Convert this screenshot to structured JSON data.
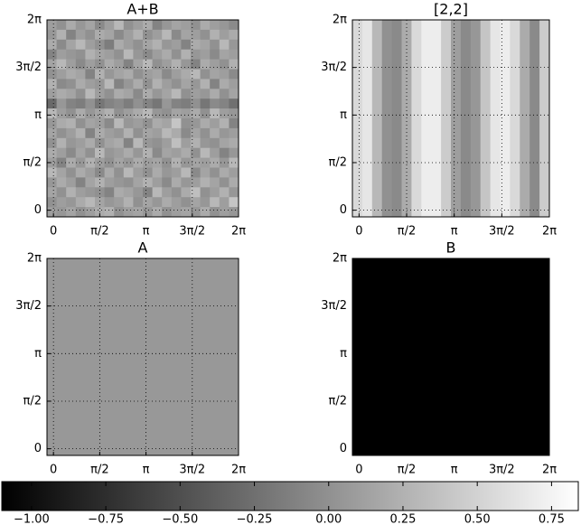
{
  "chart_data": [
    {
      "type": "heatmap",
      "title": "A+B",
      "z": [
        [
          0.1,
          0.0,
          0.2,
          0.05,
          0.15,
          -0.05,
          0.1,
          0.3,
          0.0,
          0.1,
          0.2,
          -0.1,
          0.05,
          0.15,
          0.1,
          0.0,
          0.2,
          0.1,
          0.05,
          -0.05
        ],
        [
          0.05,
          0.25,
          -0.1,
          0.1,
          0.0,
          0.2,
          0.15,
          -0.05,
          0.1,
          0.25,
          0.0,
          0.1,
          0.3,
          -0.05,
          0.15,
          0.1,
          0.0,
          0.25,
          0.1,
          0.2
        ],
        [
          0.2,
          -0.05,
          0.15,
          0.3,
          0.1,
          0.0,
          -0.15,
          0.2,
          0.1,
          0.0,
          0.15,
          0.25,
          0.05,
          0.1,
          -0.1,
          0.2,
          0.15,
          0.0,
          0.3,
          0.05
        ],
        [
          -0.1,
          0.1,
          0.05,
          0.0,
          0.25,
          0.15,
          0.1,
          0.0,
          0.3,
          0.05,
          -0.05,
          0.1,
          0.2,
          0.0,
          0.25,
          0.05,
          0.1,
          -0.05,
          0.15,
          0.1
        ],
        [
          0.15,
          0.3,
          0.1,
          -0.05,
          0.1,
          0.0,
          0.2,
          0.1,
          -0.1,
          0.15,
          0.3,
          0.0,
          0.1,
          0.25,
          0.05,
          -0.1,
          0.2,
          0.1,
          0.0,
          0.25
        ],
        [
          0.0,
          0.1,
          0.2,
          0.15,
          -0.1,
          0.25,
          0.05,
          0.15,
          0.2,
          0.0,
          0.1,
          0.15,
          -0.05,
          0.1,
          0.2,
          0.3,
          0.0,
          0.15,
          0.1,
          -0.05
        ],
        [
          0.25,
          -0.05,
          0.0,
          0.2,
          0.1,
          0.05,
          0.3,
          -0.1,
          0.05,
          0.2,
          0.0,
          0.25,
          0.1,
          0.0,
          0.15,
          0.05,
          0.25,
          -0.1,
          0.2,
          0.1
        ],
        [
          0.1,
          0.2,
          0.15,
          0.0,
          0.3,
          0.1,
          0.0,
          0.2,
          0.15,
          -0.05,
          0.2,
          0.05,
          0.15,
          0.3,
          0.0,
          0.1,
          0.05,
          0.2,
          0.0,
          0.15
        ],
        [
          -0.3,
          0.05,
          -0.1,
          -0.15,
          0.0,
          -0.2,
          -0.1,
          -0.05,
          -0.15,
          0.0,
          -0.1,
          -0.2,
          0.05,
          -0.1,
          -0.15,
          0.0,
          -0.2,
          -0.05,
          -0.1,
          -0.25
        ],
        [
          0.3,
          0.1,
          0.0,
          0.2,
          0.05,
          0.15,
          0.25,
          0.0,
          0.1,
          0.2,
          0.3,
          0.05,
          0.0,
          0.15,
          0.1,
          0.2,
          0.0,
          0.3,
          0.1,
          0.05
        ],
        [
          0.05,
          0.2,
          0.25,
          0.0,
          0.15,
          0.1,
          -0.05,
          0.3,
          0.05,
          0.1,
          0.0,
          0.2,
          0.15,
          0.4,
          0.0,
          0.05,
          0.2,
          0.1,
          0.25,
          -0.1
        ],
        [
          0.15,
          0.0,
          0.1,
          0.25,
          -0.1,
          0.2,
          0.1,
          0.05,
          0.25,
          0.0,
          0.15,
          0.1,
          0.3,
          0.2,
          -0.05,
          0.15,
          0.0,
          0.2,
          0.05,
          0.1
        ],
        [
          0.0,
          0.25,
          0.05,
          0.1,
          0.2,
          0.0,
          0.15,
          0.2,
          -0.1,
          0.3,
          0.05,
          0.0,
          0.1,
          0.35,
          0.1,
          0.25,
          0.05,
          0.0,
          0.15,
          0.2
        ],
        [
          0.2,
          0.1,
          -0.05,
          0.15,
          0.0,
          0.3,
          0.05,
          0.1,
          0.2,
          0.05,
          0.25,
          -0.05,
          0.15,
          0.1,
          0.2,
          0.0,
          0.3,
          0.1,
          -0.1,
          0.05
        ],
        [
          0.1,
          -0.1,
          0.2,
          0.05,
          0.25,
          0.1,
          0.0,
          0.15,
          0.05,
          0.2,
          0.1,
          0.15,
          0.0,
          0.25,
          0.05,
          0.15,
          0.1,
          0.2,
          0.05,
          0.3
        ],
        [
          0.3,
          0.15,
          0.0,
          0.2,
          0.1,
          -0.05,
          0.2,
          0.0,
          0.3,
          0.1,
          0.0,
          0.2,
          0.05,
          0.1,
          0.3,
          -0.05,
          0.15,
          0.0,
          0.2,
          0.1
        ],
        [
          0.05,
          0.2,
          0.1,
          -0.1,
          0.15,
          0.25,
          0.1,
          0.05,
          0.0,
          0.15,
          0.25,
          0.1,
          -0.05,
          0.2,
          0.05,
          0.1,
          0.25,
          0.15,
          0.0,
          0.2
        ],
        [
          0.15,
          0.0,
          0.25,
          0.1,
          0.05,
          0.0,
          -0.1,
          0.2,
          0.15,
          0.05,
          -0.1,
          0.3,
          0.1,
          0.0,
          0.2,
          0.35,
          0.0,
          0.1,
          0.25,
          0.05
        ],
        [
          0.0,
          0.1,
          0.05,
          0.2,
          0.3,
          0.15,
          0.05,
          0.1,
          0.25,
          0.0,
          0.15,
          0.05,
          0.2,
          0.1,
          0.0,
          0.15,
          0.05,
          0.3,
          0.1,
          0.4
        ],
        [
          0.1,
          0.05,
          0.15,
          0.0,
          0.1,
          0.2,
          0.25,
          0.0,
          0.1,
          0.15,
          0.05,
          0.2,
          0.0,
          0.1,
          0.15,
          0.05,
          0.2,
          0.0,
          0.1,
          0.05
        ]
      ],
      "xlim": [
        -0.22,
        6.2832
      ],
      "ylim": [
        -0.22,
        6.2832
      ],
      "xticks": [
        0,
        {
          "value": 1.5708,
          "label": "π/2"
        },
        {
          "value": 3.1416,
          "label": "π"
        },
        {
          "value": 4.7124,
          "label": "3π/2"
        },
        {
          "value": 6.2832,
          "label": "2π"
        }
      ],
      "yticks": [
        0,
        {
          "value": 1.5708,
          "label": "π/2"
        },
        {
          "value": 3.1416,
          "label": "π"
        },
        {
          "value": 4.7124,
          "label": "3π/2"
        },
        {
          "value": 6.2832,
          "label": "2π"
        }
      ],
      "grid": true
    },
    {
      "type": "heatmap",
      "title": "[2,2]",
      "z": [
        [
          0.55,
          0.65,
          0.3,
          0.0,
          -0.05,
          0.2,
          0.55,
          0.7,
          0.7,
          0.45,
          0.1,
          -0.05,
          0.05,
          0.4,
          0.65,
          0.7,
          0.55,
          0.2,
          -0.05,
          0.45
        ]
      ],
      "xlim": [
        -0.22,
        6.2832
      ],
      "ylim": [
        -0.22,
        6.2832
      ],
      "xticks": [
        0,
        {
          "value": 1.5708,
          "label": "π/2"
        },
        {
          "value": 3.1416,
          "label": "π"
        },
        {
          "value": 4.7124,
          "label": "3π/2"
        },
        {
          "value": 6.2832,
          "label": "2π"
        }
      ],
      "yticks": [
        0,
        {
          "value": 1.5708,
          "label": "π/2"
        },
        {
          "value": 3.1416,
          "label": "π"
        },
        {
          "value": 4.7124,
          "label": "3π/2"
        },
        {
          "value": 6.2832,
          "label": "2π"
        }
      ],
      "grid": true
    },
    {
      "type": "heatmap",
      "title": "A",
      "z": [
        [
          0.06
        ]
      ],
      "xlim": [
        -0.22,
        6.2832
      ],
      "ylim": [
        -0.22,
        6.2832
      ],
      "xticks": [
        0,
        {
          "value": 1.5708,
          "label": "π/2"
        },
        {
          "value": 3.1416,
          "label": "π"
        },
        {
          "value": 4.7124,
          "label": "3π/2"
        },
        {
          "value": 6.2832,
          "label": "2π"
        }
      ],
      "yticks": [
        0,
        {
          "value": 1.5708,
          "label": "π/2"
        },
        {
          "value": 3.1416,
          "label": "π"
        },
        {
          "value": 4.7124,
          "label": "3π/2"
        },
        {
          "value": 6.2832,
          "label": "2π"
        }
      ],
      "grid": true
    },
    {
      "type": "heatmap",
      "title": "B",
      "z": [
        [
          -1.1
        ]
      ],
      "xlim": [
        -0.22,
        6.2832
      ],
      "ylim": [
        -0.22,
        6.2832
      ],
      "xticks": [
        0,
        {
          "value": 1.5708,
          "label": "π/2"
        },
        {
          "value": 3.1416,
          "label": "π"
        },
        {
          "value": 4.7124,
          "label": "3π/2"
        },
        {
          "value": 6.2832,
          "label": "2π"
        }
      ],
      "yticks": [
        0,
        {
          "value": 1.5708,
          "label": "π/2"
        },
        {
          "value": 3.1416,
          "label": "π"
        },
        {
          "value": 4.7124,
          "label": "3π/2"
        },
        {
          "value": 6.2832,
          "label": "2π"
        }
      ],
      "grid": true
    },
    {
      "type": "colorbar",
      "clim": [
        -1.1,
        0.84
      ],
      "ticks": [
        {
          "value": -1,
          "label": "−1.00"
        },
        {
          "value": -0.75,
          "label": "−0.75"
        },
        {
          "value": -0.5,
          "label": "−0.50"
        },
        {
          "value": -0.25,
          "label": "−0.25"
        },
        {
          "value": 0,
          "label": "0.00"
        },
        {
          "value": 0.25,
          "label": "0.25"
        },
        {
          "value": 0.5,
          "label": "0.50"
        },
        {
          "value": 0.75,
          "label": "0.75"
        }
      ]
    }
  ]
}
